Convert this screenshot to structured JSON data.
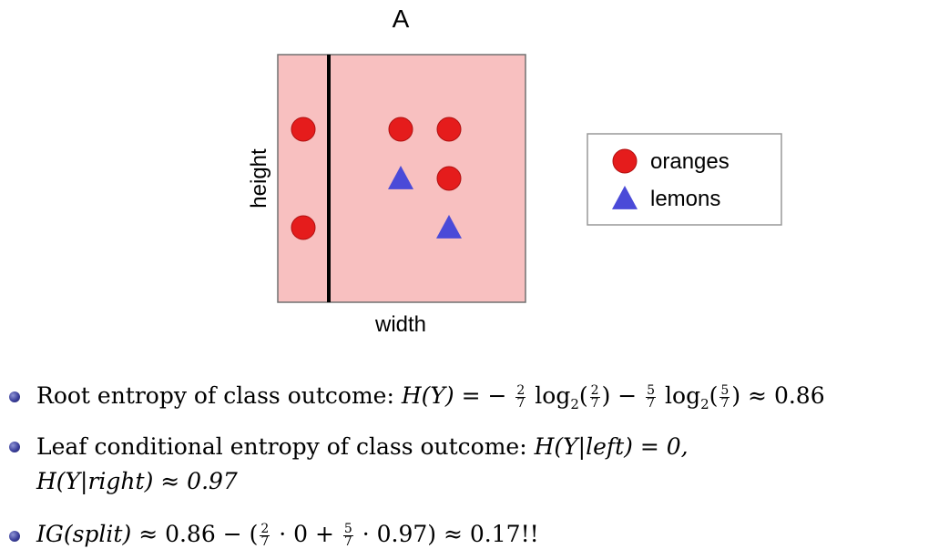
{
  "chart_data": {
    "type": "scatter",
    "title": "A",
    "xlabel": "width",
    "ylabel": "height",
    "split_line": "vertical",
    "region_color": "#f8c0c0",
    "series": [
      {
        "name": "oranges",
        "marker": "circle",
        "color": "#e51c1c",
        "points": [
          [
            1,
            3
          ],
          [
            1,
            1
          ],
          [
            3,
            3
          ],
          [
            4,
            3
          ],
          [
            4,
            2
          ]
        ]
      },
      {
        "name": "lemons",
        "marker": "triangle",
        "color": "#4a4ad8",
        "points": [
          [
            3,
            2
          ],
          [
            4,
            1
          ]
        ]
      }
    ]
  },
  "bullets": {
    "b1_text": "Root entropy of class outcome:",
    "b1_lhs": "H(Y) = −",
    "b1_log1": "log",
    "b1_sub1": "2",
    "b1_minus": "−",
    "b1_log2": "log",
    "b1_sub2": "2",
    "b1_approx": "≈ 0.86",
    "f2": "2",
    "f7": "7",
    "f5": "5",
    "b2_text": "Leaf conditional entropy of class outcome:",
    "b2_expr1": "H(Y|left) = 0,",
    "b2_expr2": "H(Y|right) ≈ 0.97",
    "b3_lhs": "IG(split)",
    "b3_mid1": "≈ 0.86 − (",
    "b3_mid2": "· 0 +",
    "b3_mid3": "· 0.97) ≈ 0.17!!"
  }
}
